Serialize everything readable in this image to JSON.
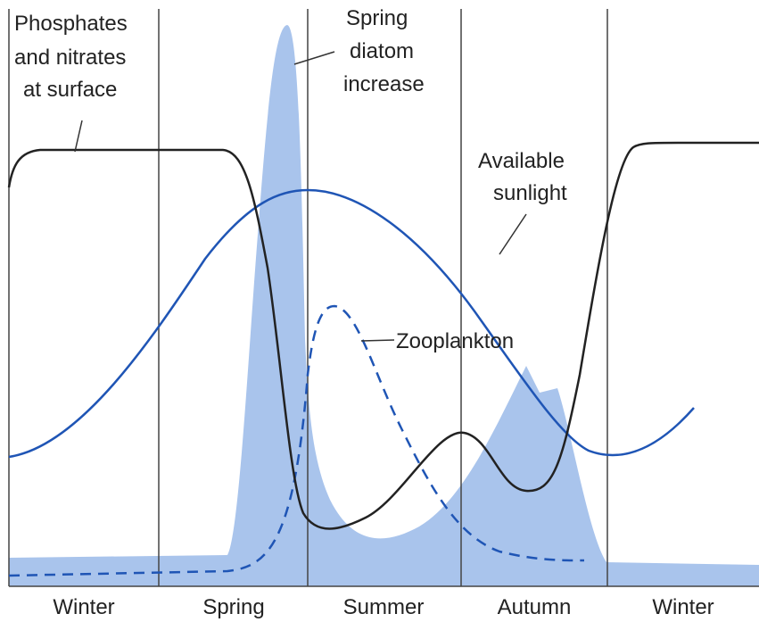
{
  "diagram": {
    "labels": {
      "nutrients": [
        "Phosphates",
        "and nitrates",
        "at surface"
      ],
      "diatom": [
        "Spring",
        "diatom",
        "increase"
      ],
      "sunlight": [
        "Available",
        "sunlight"
      ],
      "zooplankton": "Zooplankton"
    },
    "seasons": [
      "Winter",
      "Spring",
      "Summer",
      "Autumn",
      "Winter"
    ]
  }
}
